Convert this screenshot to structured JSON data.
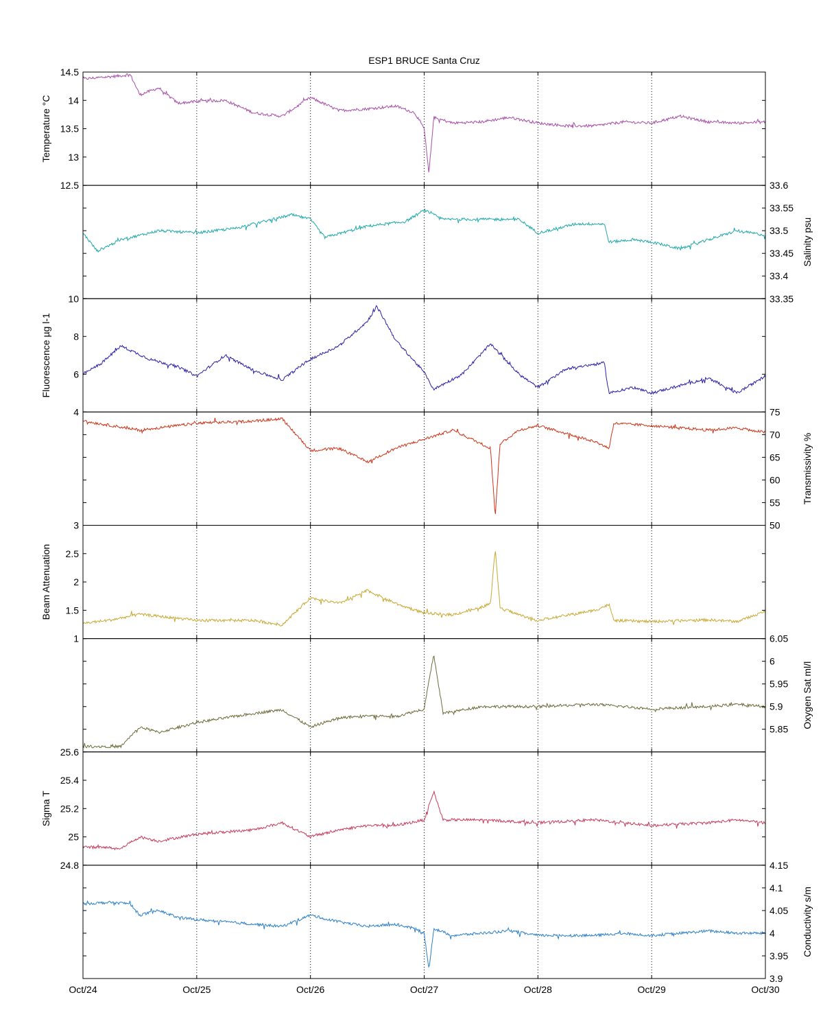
{
  "chart_data": {
    "type": "line",
    "title": "ESP1 BRUCE Santa Cruz",
    "x_ticks": [
      "Oct/24",
      "Oct/25",
      "Oct/26",
      "Oct/27",
      "Oct/28",
      "Oct/29",
      "Oct/30"
    ],
    "xlim": [
      "Oct/24",
      "Oct/30"
    ],
    "grid": "vertical-dotted",
    "panels": [
      {
        "name": "Temperature °C",
        "side": "left",
        "color": "#a64ca6",
        "ylim": [
          12.5,
          14.5
        ],
        "yticks": [
          "12.5",
          "13",
          "13.5",
          "14",
          "14.5"
        ],
        "x": [
          "Oct/24 00:00",
          "Oct/24 06:00",
          "Oct/24 10:00",
          "Oct/24 12:00",
          "Oct/24 16:00",
          "Oct/24 20:00",
          "Oct/25 00:00",
          "Oct/25 06:00",
          "Oct/25 12:00",
          "Oct/25 18:00",
          "Oct/26 00:00",
          "Oct/26 06:00",
          "Oct/26 12:00",
          "Oct/26 18:00",
          "Oct/26 22:00",
          "Oct/27 00:00",
          "Oct/27 01:00",
          "Oct/27 02:00",
          "Oct/27 06:00",
          "Oct/27 12:00",
          "Oct/27 18:00",
          "Oct/28 00:00",
          "Oct/28 06:00",
          "Oct/28 12:00",
          "Oct/28 18:00",
          "Oct/29 00:00",
          "Oct/29 06:00",
          "Oct/29 12:00",
          "Oct/29 18:00",
          "Oct/30 00:00"
        ],
        "y": [
          14.38,
          14.42,
          14.45,
          14.1,
          14.22,
          13.95,
          13.98,
          14.0,
          13.78,
          13.72,
          14.05,
          13.82,
          13.85,
          13.9,
          13.78,
          13.5,
          12.7,
          13.7,
          13.6,
          13.62,
          13.7,
          13.6,
          13.55,
          13.55,
          13.62,
          13.6,
          13.72,
          13.62,
          13.6,
          13.62
        ]
      },
      {
        "name": "Salinity psu",
        "side": "right",
        "color": "#1fa8a8",
        "ylim": [
          33.35,
          33.6
        ],
        "yticks": [
          "33.35",
          "33.4",
          "33.45",
          "33.5",
          "33.55",
          "33.6"
        ],
        "x": [
          "Oct/24 00:00",
          "Oct/24 03:00",
          "Oct/24 08:00",
          "Oct/24 16:00",
          "Oct/25 00:00",
          "Oct/25 08:00",
          "Oct/25 14:00",
          "Oct/25 20:00",
          "Oct/26 00:00",
          "Oct/26 03:00",
          "Oct/26 12:00",
          "Oct/26 20:00",
          "Oct/27 00:00",
          "Oct/27 04:00",
          "Oct/27 12:00",
          "Oct/27 20:00",
          "Oct/28 00:00",
          "Oct/28 08:00",
          "Oct/28 14:00",
          "Oct/28 15:00",
          "Oct/28 20:00",
          "Oct/29 00:00",
          "Oct/29 06:00",
          "Oct/29 12:00",
          "Oct/29 18:00",
          "Oct/30 00:00"
        ],
        "y": [
          33.495,
          33.455,
          33.48,
          33.5,
          33.495,
          33.505,
          33.52,
          33.535,
          33.525,
          33.485,
          33.51,
          33.52,
          33.545,
          33.525,
          33.525,
          33.525,
          33.495,
          33.515,
          33.515,
          33.475,
          33.48,
          33.475,
          33.46,
          33.48,
          33.5,
          33.49
        ]
      },
      {
        "name": "Fluorescence µg l-1",
        "side": "left",
        "color": "#2a1fa8",
        "ylim": [
          4,
          10
        ],
        "yticks": [
          "4",
          "6",
          "8",
          "10"
        ],
        "x": [
          "Oct/24 00:00",
          "Oct/24 04:00",
          "Oct/24 08:00",
          "Oct/24 14:00",
          "Oct/24 20:00",
          "Oct/25 00:00",
          "Oct/25 06:00",
          "Oct/25 12:00",
          "Oct/25 18:00",
          "Oct/26 00:00",
          "Oct/26 06:00",
          "Oct/26 12:00",
          "Oct/26 14:00",
          "Oct/26 18:00",
          "Oct/27 00:00",
          "Oct/27 02:00",
          "Oct/27 08:00",
          "Oct/27 14:00",
          "Oct/27 20:00",
          "Oct/28 00:00",
          "Oct/28 06:00",
          "Oct/28 14:00",
          "Oct/28 15:00",
          "Oct/28 20:00",
          "Oct/29 00:00",
          "Oct/29 06:00",
          "Oct/29 12:00",
          "Oct/29 18:00",
          "Oct/30 00:00"
        ],
        "y": [
          6.0,
          6.6,
          7.5,
          6.8,
          6.4,
          5.9,
          7.0,
          6.2,
          5.7,
          6.8,
          7.5,
          8.8,
          9.6,
          7.8,
          6.1,
          5.2,
          6.0,
          7.6,
          6.0,
          5.3,
          6.3,
          6.6,
          5.0,
          5.3,
          5.0,
          5.4,
          5.8,
          5.0,
          5.9
        ]
      },
      {
        "name": "Transmissivity %",
        "side": "right",
        "color": "#cc3318",
        "ylim": [
          50,
          75
        ],
        "yticks": [
          "50",
          "55",
          "60",
          "65",
          "70",
          "75"
        ],
        "x": [
          "Oct/24 00:00",
          "Oct/24 06:00",
          "Oct/24 12:00",
          "Oct/25 00:00",
          "Oct/25 12:00",
          "Oct/25 18:00",
          "Oct/26 00:00",
          "Oct/26 06:00",
          "Oct/26 12:00",
          "Oct/26 18:00",
          "Oct/27 00:00",
          "Oct/27 06:00",
          "Oct/27 12:00",
          "Oct/27 14:00",
          "Oct/27 15:00",
          "Oct/27 16:00",
          "Oct/27 20:00",
          "Oct/28 00:00",
          "Oct/28 12:00",
          "Oct/28 15:00",
          "Oct/28 16:00",
          "Oct/29 00:00",
          "Oct/29 12:00",
          "Oct/29 18:00",
          "Oct/30 00:00"
        ],
        "y": [
          73,
          72,
          71,
          72.5,
          73,
          73.5,
          66.5,
          67,
          64,
          67,
          69,
          71,
          68,
          67,
          52,
          68,
          71,
          72,
          68.5,
          67,
          72.5,
          72,
          71,
          71.5,
          70.5
        ]
      },
      {
        "name": "Beam Attenuation",
        "side": "left",
        "color": "#c8a832",
        "ylim": [
          1,
          3
        ],
        "yticks": [
          "1",
          "1.5",
          "2",
          "2.5",
          "3"
        ],
        "x": [
          "Oct/24 00:00",
          "Oct/24 06:00",
          "Oct/24 12:00",
          "Oct/25 00:00",
          "Oct/25 12:00",
          "Oct/25 18:00",
          "Oct/26 00:00",
          "Oct/26 06:00",
          "Oct/26 12:00",
          "Oct/26 18:00",
          "Oct/27 00:00",
          "Oct/27 06:00",
          "Oct/27 12:00",
          "Oct/27 14:00",
          "Oct/27 15:00",
          "Oct/27 16:00",
          "Oct/27 20:00",
          "Oct/28 00:00",
          "Oct/28 12:00",
          "Oct/28 15:00",
          "Oct/28 16:00",
          "Oct/29 00:00",
          "Oct/29 12:00",
          "Oct/29 18:00",
          "Oct/30 00:00"
        ],
        "y": [
          1.27,
          1.33,
          1.43,
          1.32,
          1.32,
          1.24,
          1.72,
          1.62,
          1.85,
          1.62,
          1.45,
          1.42,
          1.55,
          1.62,
          2.6,
          1.55,
          1.42,
          1.32,
          1.5,
          1.6,
          1.32,
          1.3,
          1.33,
          1.3,
          1.48
        ]
      },
      {
        "name": "Oxygen Sat ml/l",
        "side": "right",
        "color": "#6b6b3a",
        "ylim": [
          5.8,
          6.05
        ],
        "yticks": [
          "5.85",
          "5.9",
          "5.95",
          "6",
          "6.05"
        ],
        "x": [
          "Oct/24 00:00",
          "Oct/24 08:00",
          "Oct/24 12:00",
          "Oct/24 16:00",
          "Oct/25 00:00",
          "Oct/25 12:00",
          "Oct/25 18:00",
          "Oct/26 00:00",
          "Oct/26 06:00",
          "Oct/26 12:00",
          "Oct/26 18:00",
          "Oct/27 00:00",
          "Oct/27 02:00",
          "Oct/27 04:00",
          "Oct/27 12:00",
          "Oct/28 00:00",
          "Oct/28 12:00",
          "Oct/28 18:00",
          "Oct/29 00:00",
          "Oct/29 12:00",
          "Oct/29 18:00",
          "Oct/30 00:00"
        ],
        "y": [
          5.812,
          5.812,
          5.855,
          5.843,
          5.865,
          5.885,
          5.893,
          5.855,
          5.875,
          5.88,
          5.878,
          5.895,
          6.015,
          5.885,
          5.9,
          5.9,
          5.905,
          5.9,
          5.895,
          5.9,
          5.905,
          5.9
        ]
      },
      {
        "name": "Sigma T",
        "side": "left",
        "color": "#c83a5a",
        "ylim": [
          24.8,
          25.6
        ],
        "yticks": [
          "24.8",
          "25",
          "25.2",
          "25.4",
          "25.6"
        ],
        "x": [
          "Oct/24 00:00",
          "Oct/24 08:00",
          "Oct/24 12:00",
          "Oct/24 16:00",
          "Oct/25 00:00",
          "Oct/25 12:00",
          "Oct/25 18:00",
          "Oct/26 00:00",
          "Oct/26 06:00",
          "Oct/26 12:00",
          "Oct/26 18:00",
          "Oct/27 00:00",
          "Oct/27 02:00",
          "Oct/27 04:00",
          "Oct/27 12:00",
          "Oct/28 00:00",
          "Oct/28 12:00",
          "Oct/28 18:00",
          "Oct/29 00:00",
          "Oct/29 12:00",
          "Oct/29 18:00",
          "Oct/30 00:00"
        ],
        "y": [
          24.93,
          24.92,
          25.0,
          24.97,
          25.02,
          25.05,
          25.1,
          25.0,
          25.05,
          25.08,
          25.08,
          25.12,
          25.32,
          25.12,
          25.12,
          25.1,
          25.12,
          25.1,
          25.08,
          25.1,
          25.12,
          25.1
        ]
      },
      {
        "name": "Conductivity s/m",
        "side": "right",
        "color": "#2a7ec8",
        "ylim": [
          3.9,
          4.15
        ],
        "yticks": [
          "3.9",
          "3.95",
          "4",
          "4.05",
          "4.1",
          "4.15"
        ],
        "x": [
          "Oct/24 00:00",
          "Oct/24 06:00",
          "Oct/24 10:00",
          "Oct/24 12:00",
          "Oct/24 16:00",
          "Oct/24 20:00",
          "Oct/25 00:00",
          "Oct/25 12:00",
          "Oct/25 18:00",
          "Oct/26 00:00",
          "Oct/26 06:00",
          "Oct/26 12:00",
          "Oct/26 18:00",
          "Oct/26 22:00",
          "Oct/27 00:00",
          "Oct/27 01:00",
          "Oct/27 02:00",
          "Oct/27 06:00",
          "Oct/27 12:00",
          "Oct/27 18:00",
          "Oct/28 00:00",
          "Oct/28 12:00",
          "Oct/28 18:00",
          "Oct/29 00:00",
          "Oct/29 12:00",
          "Oct/29 18:00",
          "Oct/30 00:00"
        ],
        "y": [
          4.065,
          4.068,
          4.065,
          4.04,
          4.05,
          4.035,
          4.03,
          4.02,
          4.015,
          4.04,
          4.025,
          4.015,
          4.02,
          4.01,
          4.0,
          3.92,
          4.01,
          3.995,
          4.0,
          4.005,
          3.995,
          3.995,
          4.0,
          3.995,
          4.005,
          4.0,
          4.0
        ]
      }
    ]
  }
}
